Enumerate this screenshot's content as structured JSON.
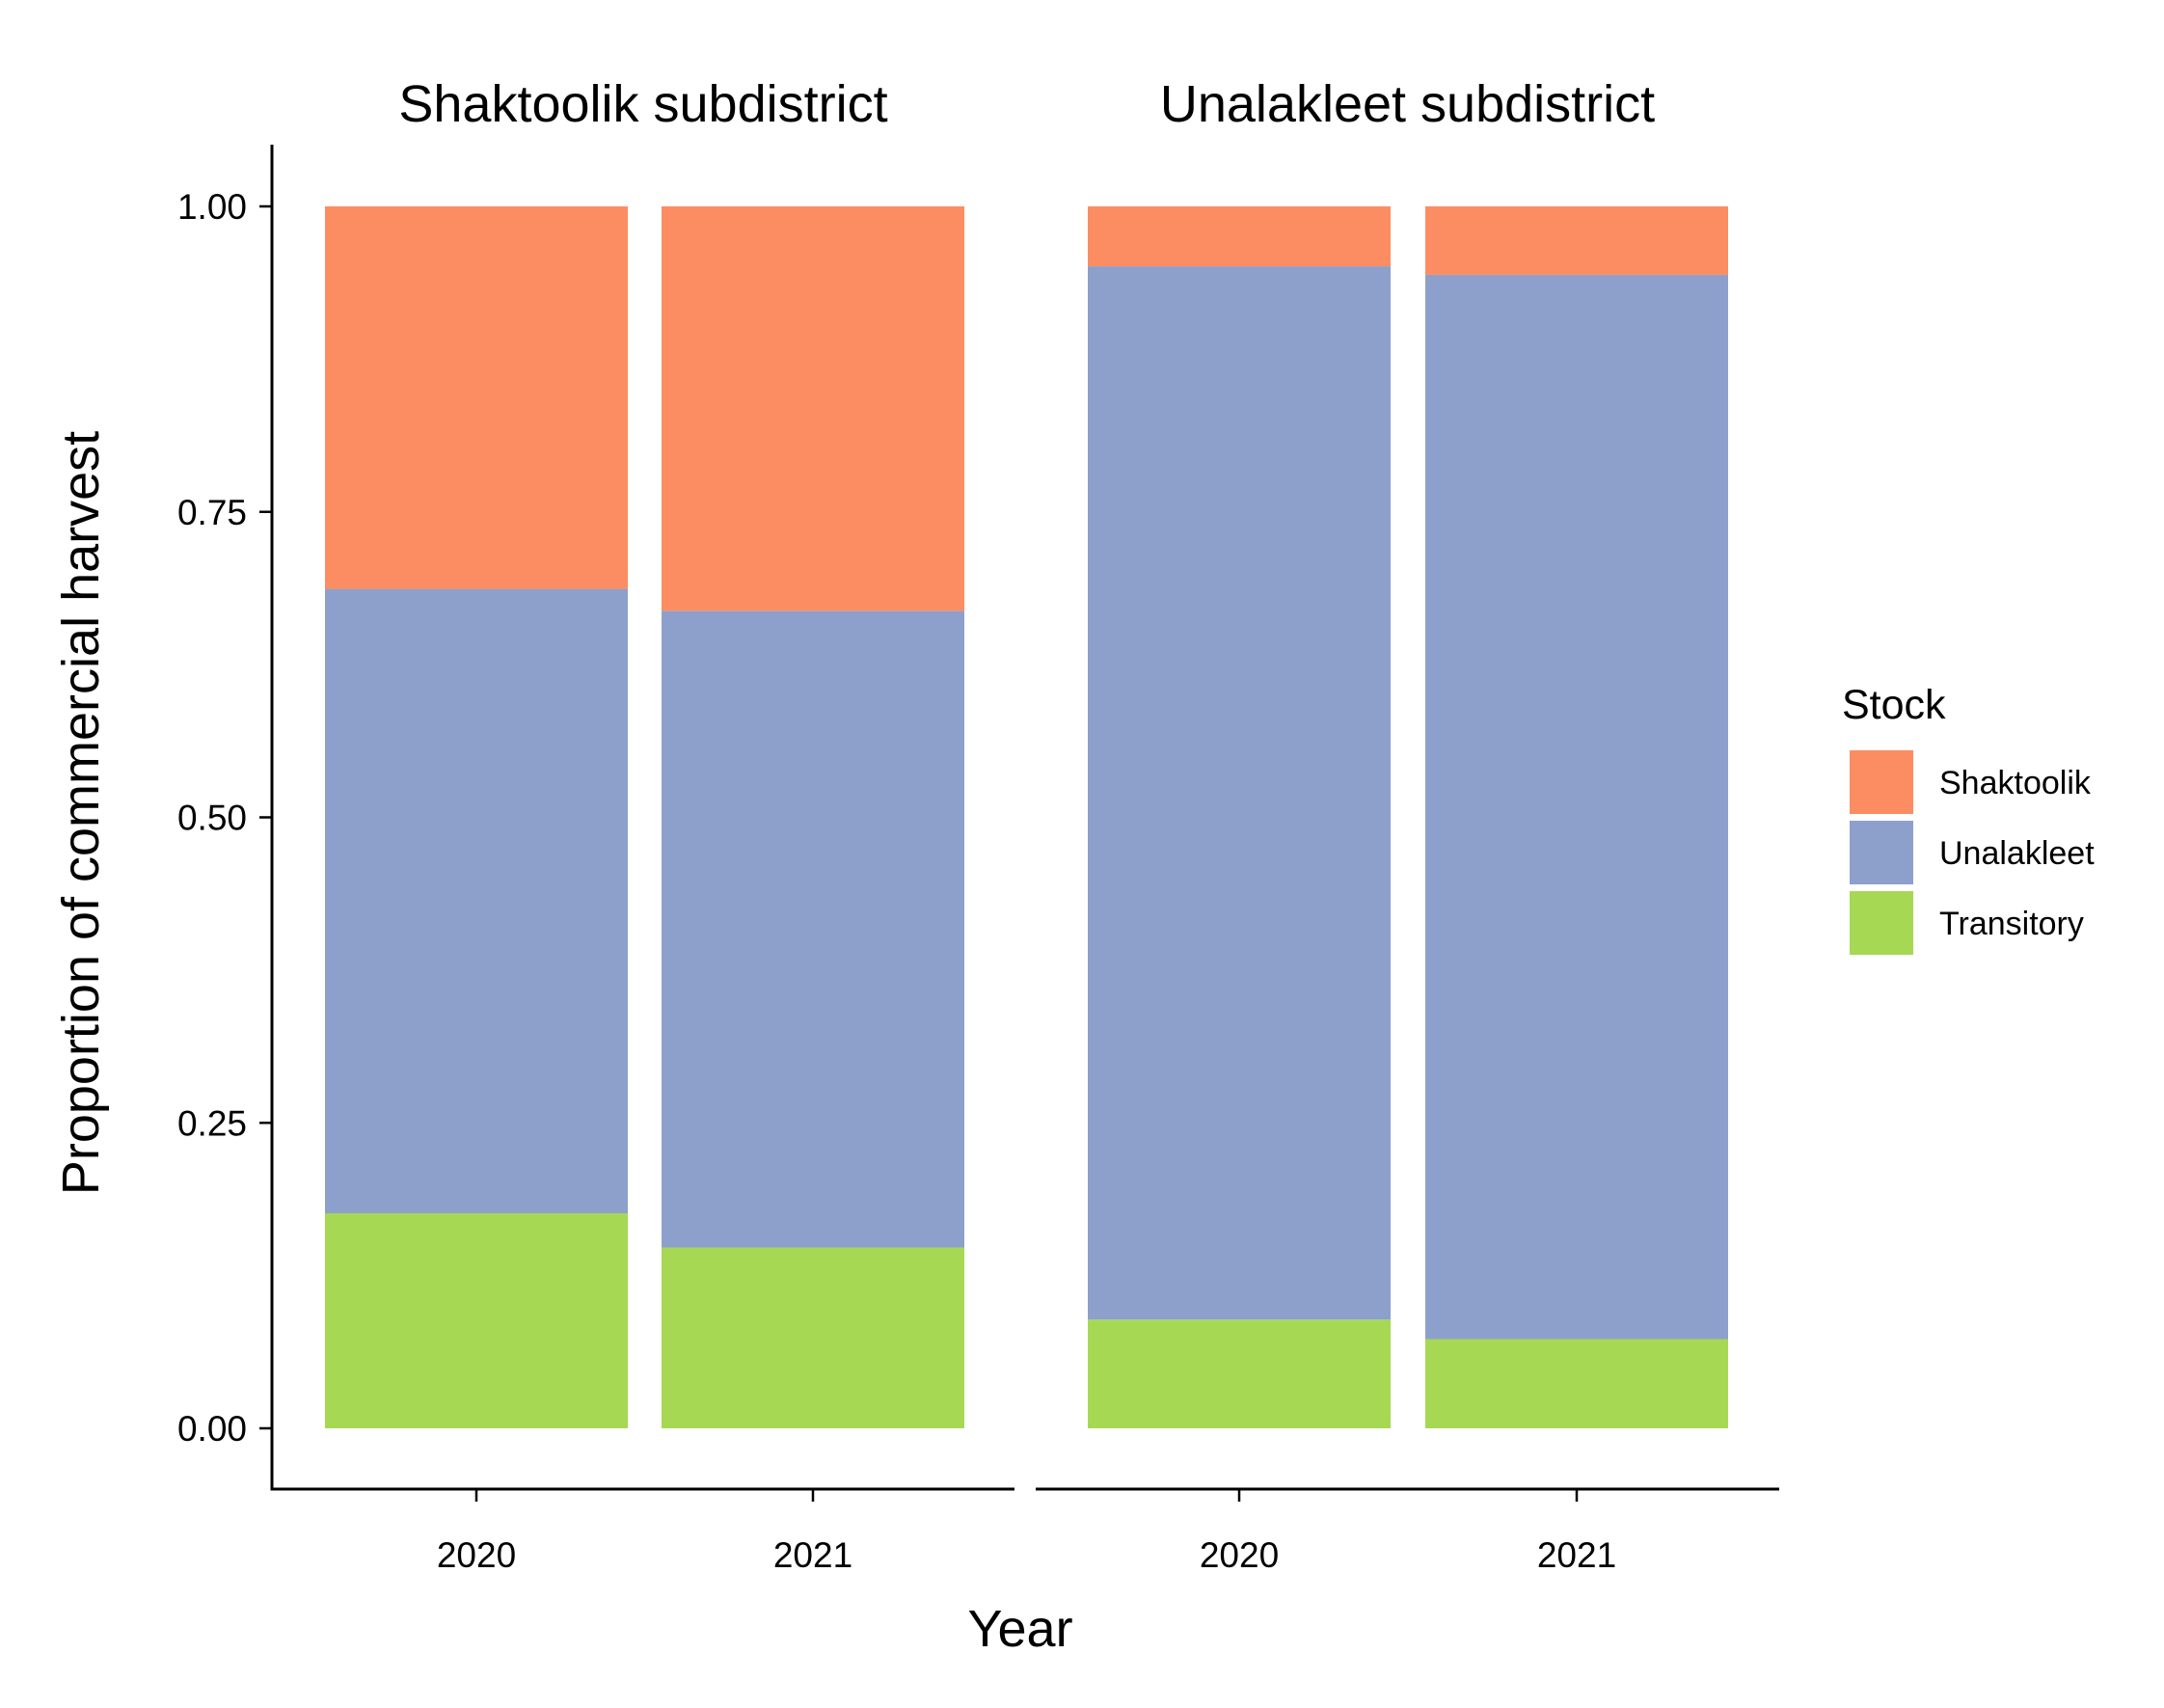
{
  "chart_data": {
    "type": "bar",
    "stacked": true,
    "xlabel": "Year",
    "ylabel": "Proportion of commercial harvest",
    "ylim": [
      0,
      1
    ],
    "yticks": [
      "0.00",
      "0.25",
      "0.50",
      "0.75",
      "1.00"
    ],
    "ytick_values": [
      0,
      0.25,
      0.5,
      0.75,
      1.0
    ],
    "legend": {
      "title": "Stock",
      "position": "right",
      "entries": [
        "Shaktoolik",
        "Unalakleet",
        "Transitory"
      ]
    },
    "colors": {
      "Shaktoolik": "#FC8D62",
      "Unalakleet": "#8DA0CB",
      "Transitory": "#A6D854"
    },
    "stack_order_bottom_to_top": [
      "Transitory",
      "Unalakleet",
      "Shaktoolik"
    ],
    "facets": [
      {
        "title": "Shaktoolik subdistrict",
        "categories": [
          "2020",
          "2021"
        ],
        "series": [
          {
            "name": "Shaktoolik",
            "values": [
              0.313,
              0.331
            ]
          },
          {
            "name": "Unalakleet",
            "values": [
              0.511,
              0.521
            ]
          },
          {
            "name": "Transitory",
            "values": [
              0.176,
              0.148
            ]
          }
        ]
      },
      {
        "title": "Unalakleet subdistrict",
        "categories": [
          "2020",
          "2021"
        ],
        "series": [
          {
            "name": "Shaktoolik",
            "values": [
              0.049,
              0.056
            ]
          },
          {
            "name": "Unalakleet",
            "values": [
              0.862,
              0.871
            ]
          },
          {
            "name": "Transitory",
            "values": [
              0.089,
              0.073
            ]
          }
        ]
      }
    ]
  }
}
